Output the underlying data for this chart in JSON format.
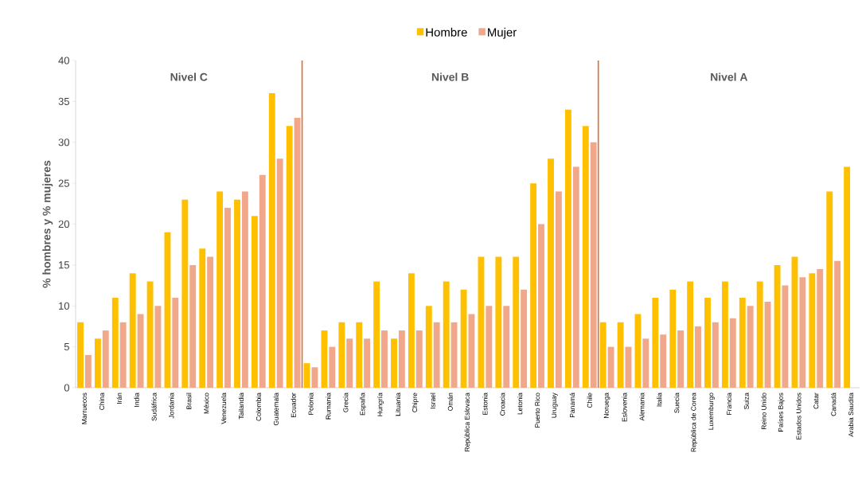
{
  "chart_data": {
    "type": "bar",
    "ylabel": "% hombres y % mujeres",
    "categories": [
      "Marruecos",
      "China",
      "Irán",
      "India",
      "Sudáfrica",
      "Jordania",
      "Brasil",
      "México",
      "Venezuela",
      "Tailandia",
      "Colombia",
      "Guatemala",
      "Ecuador",
      "Polonia",
      "Rumania",
      "Grecia",
      "España",
      "Hungría",
      "Lituania",
      "Chipre",
      "Israel",
      "Omán",
      "República Eslovaca",
      "Estonia",
      "Croacia",
      "Letonia",
      "Puerto Rico",
      "Uruguay",
      "Panamá",
      "Chile",
      "Noruega",
      "Eslovenia",
      "Alemania",
      "Italia",
      "Suecia",
      "República de Corea",
      "Luxemburgo",
      "Francia",
      "Suiza",
      "Reino Unido",
      "Países Bajos",
      "Estados Unidos",
      "Catar",
      "Canadá",
      "Arabia Saudita"
    ],
    "series": [
      {
        "name": "Hombre",
        "color": "#ffc000",
        "values": [
          8,
          6,
          11,
          14,
          13,
          19,
          23,
          17,
          24,
          23,
          21,
          36,
          32,
          3,
          7,
          8,
          8,
          13,
          6,
          14,
          10,
          13,
          12,
          16,
          16,
          16,
          25,
          28,
          34,
          32,
          8,
          8,
          9,
          11,
          12,
          13,
          11,
          13,
          11,
          13,
          15,
          16,
          14,
          24,
          27
        ]
      },
      {
        "name": "Mujer",
        "color": "#f1a78a",
        "values": [
          4,
          7,
          8,
          9,
          10,
          11,
          15,
          16,
          22,
          24,
          26,
          28,
          33,
          2.5,
          5,
          6,
          6,
          7,
          7,
          7,
          8,
          8,
          9,
          10,
          10,
          12,
          20,
          24,
          27,
          30,
          5,
          5,
          6,
          6.5,
          7,
          7.5,
          8,
          8.5,
          10,
          10.5,
          12.5,
          13.5,
          14.5,
          15.5,
          null
        ]
      }
    ],
    "ylim": [
      0,
      40
    ],
    "yticks": [
      0,
      5,
      10,
      15,
      20,
      25,
      30,
      35,
      40
    ],
    "annotations": [
      "Nivel C",
      "Nivel B",
      "Nivel A"
    ],
    "legend": "top"
  }
}
